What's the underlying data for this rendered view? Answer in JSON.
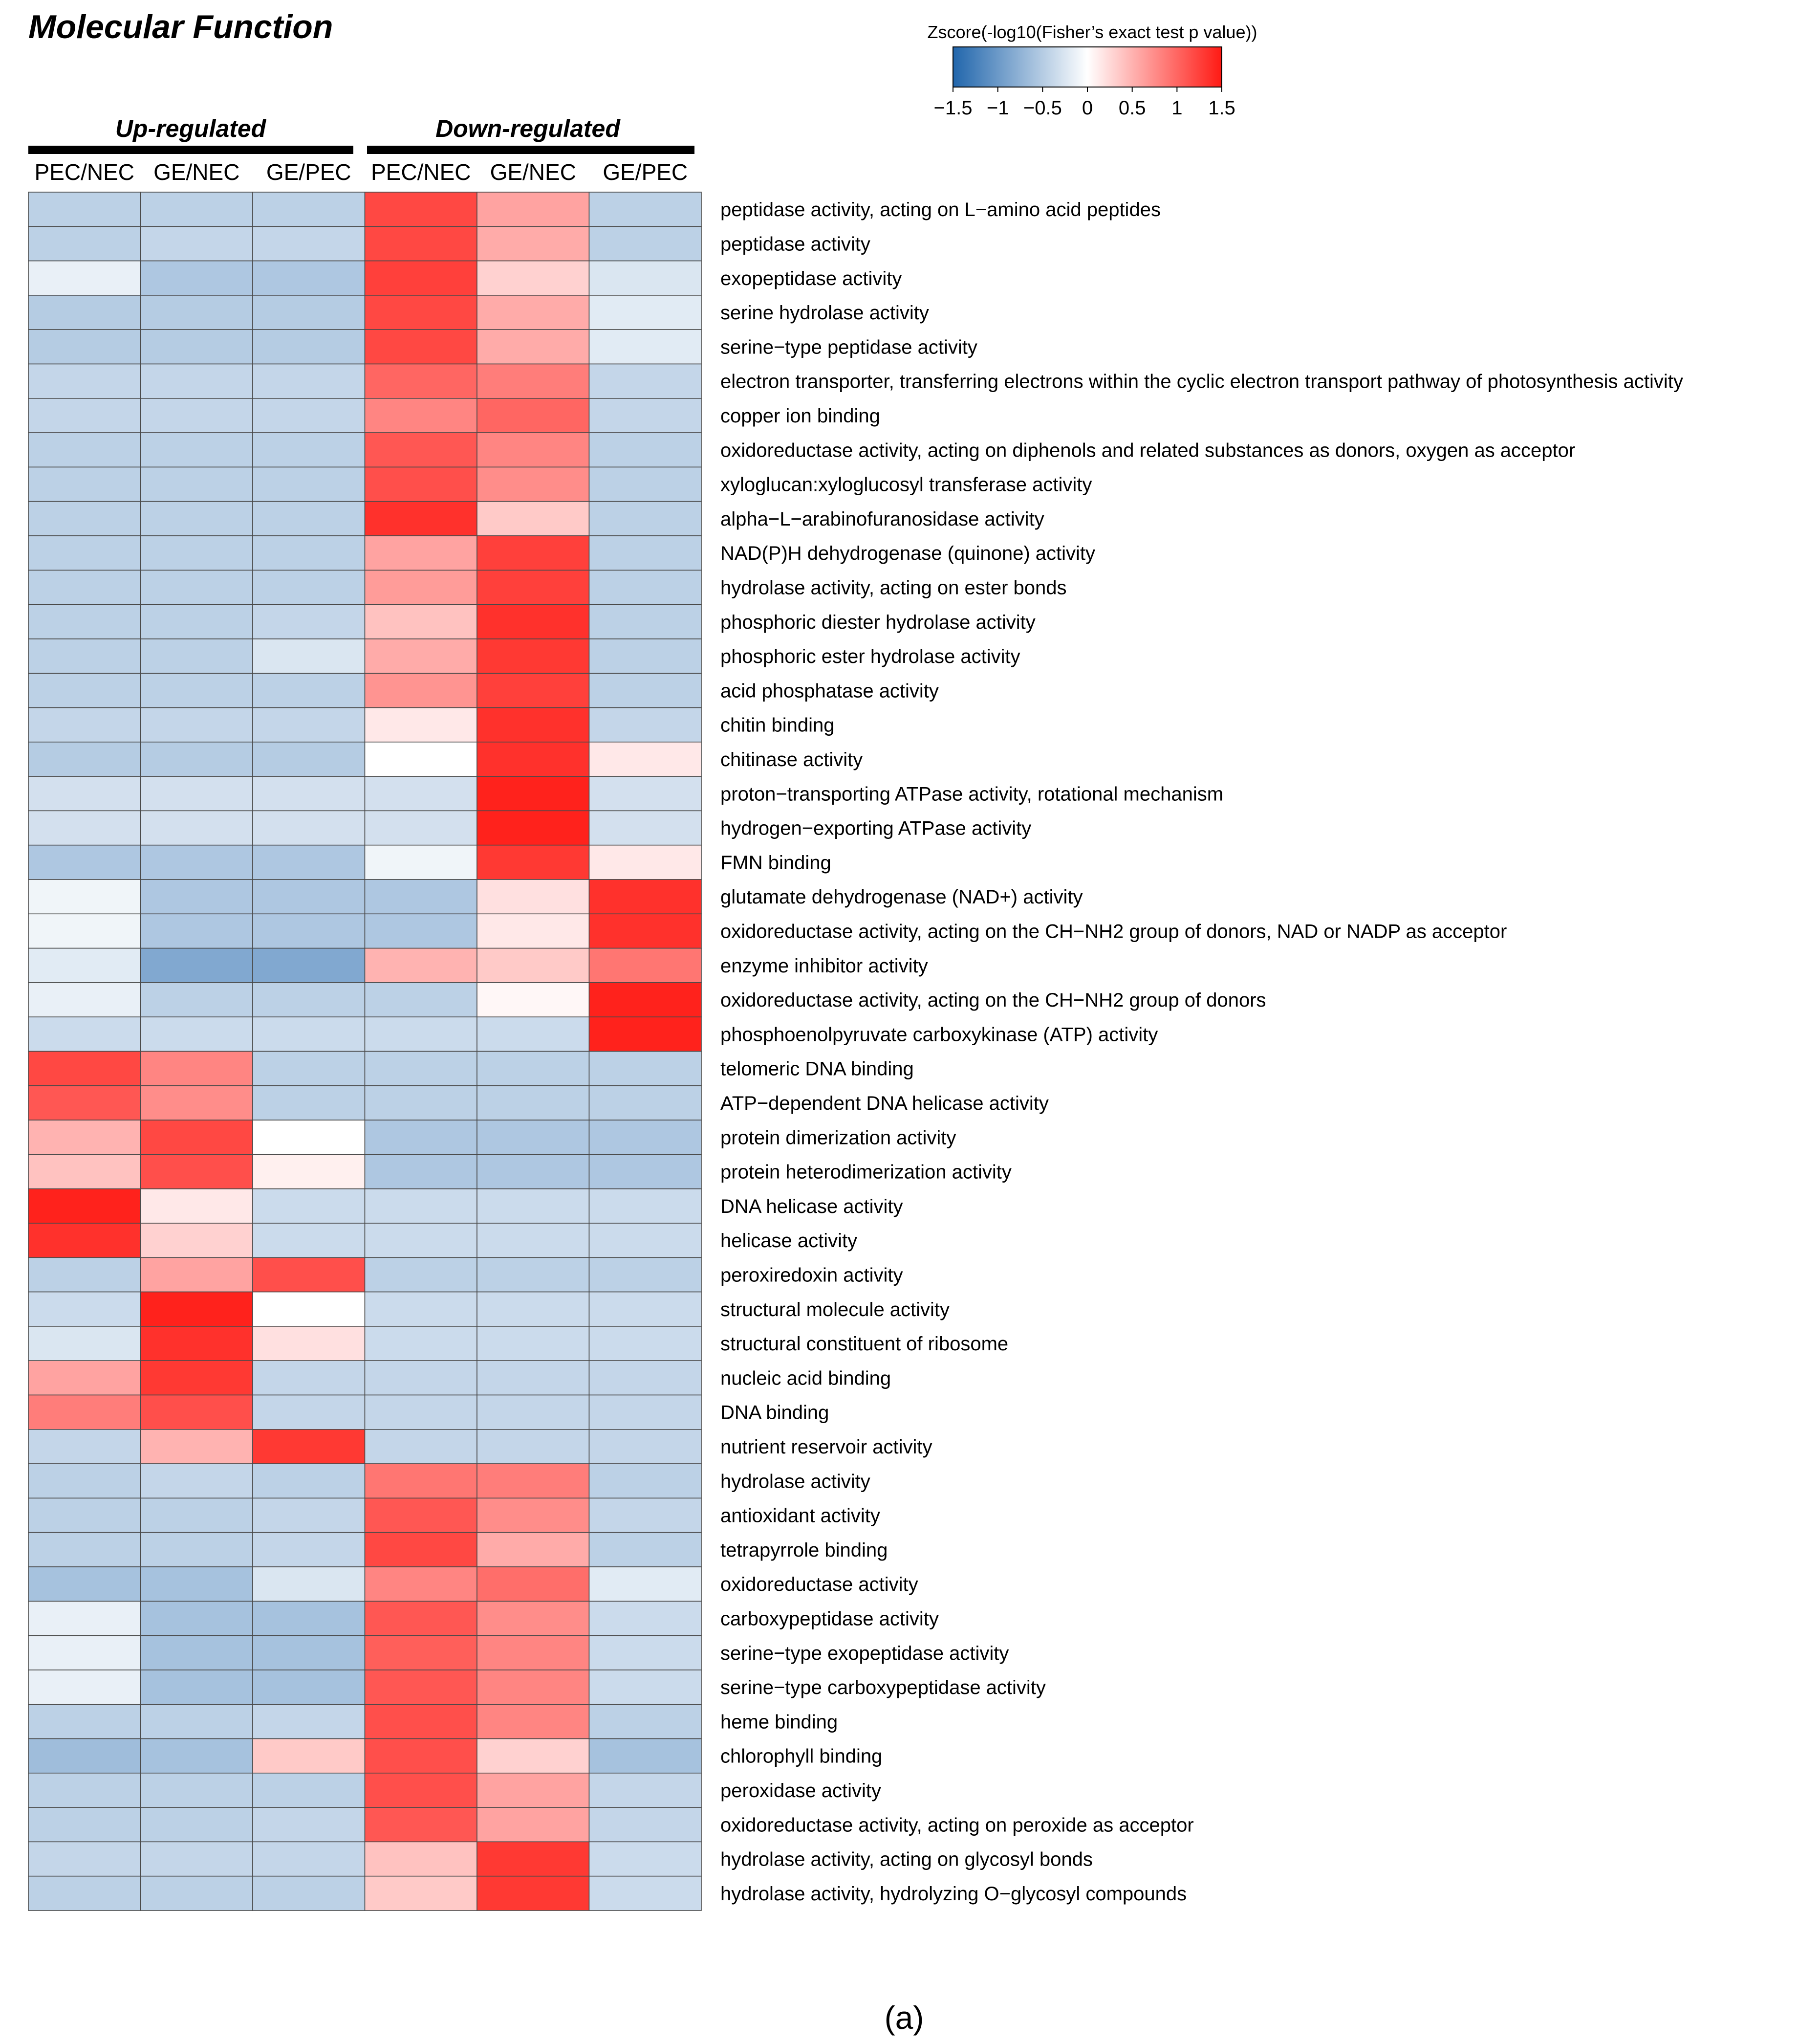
{
  "title": "Molecular Function",
  "caption": "(a)",
  "legend": {
    "title": "Zscore(-log10(Fisher’s exact test p value))",
    "ticks": [
      "−1.5",
      "−1",
      "−0.5",
      "0",
      "0.5",
      "1",
      "1.5"
    ],
    "tick_values": [
      -1.5,
      -1,
      -0.5,
      0,
      0.5,
      1,
      1.5
    ],
    "colors": {
      "low": "#2166ac",
      "mid": "#ffffff",
      "high": "#ff1a14"
    }
  },
  "chart_data": {
    "type": "heatmap",
    "title": "Molecular Function",
    "value_range": [
      -1.5,
      1.5
    ],
    "groups": [
      {
        "label": "Up-regulated",
        "columns": [
          0,
          1,
          2
        ]
      },
      {
        "label": "Down-regulated",
        "columns": [
          3,
          4,
          5
        ]
      }
    ],
    "columns": [
      "PEC/NEC",
      "GE/NEC",
      "GE/PEC",
      "PEC/NEC",
      "GE/NEC",
      "GE/PEC"
    ],
    "rows": [
      "peptidase activity, acting on L−amino acid peptides",
      "peptidase activity",
      "exopeptidase activity",
      "serine hydrolase activity",
      "serine−type peptidase activity",
      "electron transporter, transferring electrons within the cyclic electron transport pathway of photosynthesis activity",
      "copper ion binding",
      "oxidoreductase activity, acting on diphenols and related substances as donors, oxygen as acceptor",
      "xyloglucan:xyloglucosyl transferase activity",
      "alpha−L−arabinofuranosidase activity",
      "NAD(P)H dehydrogenase (quinone) activity",
      "hydrolase activity, acting on ester bonds",
      "phosphoric diester hydrolase activity",
      "phosphoric ester hydrolase activity",
      "acid phosphatase activity",
      "chitin binding",
      "chitinase activity",
      "proton−transporting ATPase activity, rotational mechanism",
      "hydrogen−exporting ATPase activity",
      "FMN binding",
      "glutamate dehydrogenase (NAD+) activity",
      "oxidoreductase activity, acting on the CH−NH2 group of donors, NAD or NADP as acceptor",
      "enzyme inhibitor activity",
      "oxidoreductase activity, acting on the CH−NH2 group of donors",
      "phosphoenolpyruvate carboxykinase (ATP) activity",
      "telomeric DNA binding",
      "ATP−dependent DNA helicase activity",
      "protein dimerization activity",
      "protein heterodimerization activity",
      "DNA helicase activity",
      "helicase activity",
      "peroxiredoxin activity",
      "structural molecule activity",
      "structural constituent of ribosome",
      "nucleic acid binding",
      "DNA binding",
      "nutrient reservoir activity",
      "hydrolase activity",
      "antioxidant activity",
      "tetrapyrrole binding",
      "oxidoreductase activity",
      "carboxypeptidase activity",
      "serine−type exopeptidase activity",
      "serine−type carboxypeptidase activity",
      "heme binding",
      "chlorophyll binding",
      "peroxidase activity",
      "oxidoreductase activity, acting on peroxide as acceptor",
      "hydrolase activity, acting on glycosyl bonds",
      "hydrolase activity, hydrolyzing O−glycosyl compounds"
    ],
    "values": [
      [
        -0.45,
        -0.45,
        -0.45,
        1.2,
        0.6,
        -0.45
      ],
      [
        -0.45,
        -0.4,
        -0.4,
        1.2,
        0.55,
        -0.45
      ],
      [
        -0.15,
        -0.55,
        -0.55,
        1.25,
        0.3,
        -0.25
      ],
      [
        -0.5,
        -0.5,
        -0.5,
        1.2,
        0.55,
        -0.2
      ],
      [
        -0.5,
        -0.5,
        -0.5,
        1.2,
        0.55,
        -0.2
      ],
      [
        -0.4,
        -0.4,
        -0.4,
        1.0,
        0.85,
        -0.4
      ],
      [
        -0.4,
        -0.4,
        -0.4,
        0.8,
        1.0,
        -0.4
      ],
      [
        -0.45,
        -0.45,
        -0.45,
        1.1,
        0.8,
        -0.45
      ],
      [
        -0.45,
        -0.45,
        -0.45,
        1.15,
        0.75,
        -0.45
      ],
      [
        -0.45,
        -0.45,
        -0.45,
        1.35,
        0.35,
        -0.45
      ],
      [
        -0.45,
        -0.45,
        -0.45,
        0.6,
        1.25,
        -0.45
      ],
      [
        -0.45,
        -0.45,
        -0.45,
        0.65,
        1.25,
        -0.45
      ],
      [
        -0.45,
        -0.45,
        -0.4,
        0.4,
        1.35,
        -0.45
      ],
      [
        -0.45,
        -0.45,
        -0.25,
        0.55,
        1.3,
        -0.45
      ],
      [
        -0.45,
        -0.45,
        -0.45,
        0.7,
        1.25,
        -0.45
      ],
      [
        -0.4,
        -0.4,
        -0.4,
        0.15,
        1.35,
        -0.4
      ],
      [
        -0.5,
        -0.5,
        -0.5,
        0.0,
        1.35,
        0.15
      ],
      [
        -0.3,
        -0.3,
        -0.3,
        -0.3,
        1.45,
        -0.3
      ],
      [
        -0.3,
        -0.3,
        -0.3,
        -0.3,
        1.45,
        -0.3
      ],
      [
        -0.55,
        -0.55,
        -0.55,
        -0.1,
        1.3,
        0.15
      ],
      [
        -0.1,
        -0.55,
        -0.55,
        -0.55,
        0.2,
        1.35
      ],
      [
        -0.1,
        -0.55,
        -0.55,
        -0.55,
        0.15,
        1.35
      ],
      [
        -0.2,
        -0.85,
        -0.85,
        0.5,
        0.35,
        0.9
      ],
      [
        -0.15,
        -0.45,
        -0.45,
        -0.45,
        0.05,
        1.45
      ],
      [
        -0.35,
        -0.35,
        -0.35,
        -0.35,
        -0.35,
        1.45
      ],
      [
        1.2,
        0.8,
        -0.45,
        -0.45,
        -0.45,
        -0.45
      ],
      [
        1.1,
        0.75,
        -0.45,
        -0.45,
        -0.45,
        -0.45
      ],
      [
        0.5,
        1.2,
        0.0,
        -0.55,
        -0.55,
        -0.55
      ],
      [
        0.4,
        1.15,
        0.1,
        -0.55,
        -0.55,
        -0.55
      ],
      [
        1.45,
        0.15,
        -0.35,
        -0.35,
        -0.35,
        -0.35
      ],
      [
        1.35,
        0.3,
        -0.35,
        -0.35,
        -0.35,
        -0.35
      ],
      [
        -0.45,
        0.6,
        1.15,
        -0.45,
        -0.45,
        -0.45
      ],
      [
        -0.35,
        1.45,
        0.0,
        -0.35,
        -0.35,
        -0.35
      ],
      [
        -0.25,
        1.35,
        0.2,
        -0.35,
        -0.35,
        -0.35
      ],
      [
        0.6,
        1.3,
        -0.4,
        -0.4,
        -0.4,
        -0.4
      ],
      [
        0.85,
        1.15,
        -0.4,
        -0.4,
        -0.4,
        -0.4
      ],
      [
        -0.4,
        0.5,
        1.3,
        -0.4,
        -0.4,
        -0.4
      ],
      [
        -0.45,
        -0.4,
        -0.45,
        0.9,
        0.85,
        -0.45
      ],
      [
        -0.45,
        -0.45,
        -0.4,
        1.1,
        0.75,
        -0.4
      ],
      [
        -0.45,
        -0.45,
        -0.4,
        1.2,
        0.55,
        -0.45
      ],
      [
        -0.6,
        -0.6,
        -0.25,
        0.8,
        0.95,
        -0.2
      ],
      [
        -0.15,
        -0.6,
        -0.6,
        1.1,
        0.75,
        -0.35
      ],
      [
        -0.15,
        -0.6,
        -0.6,
        1.05,
        0.8,
        -0.35
      ],
      [
        -0.15,
        -0.6,
        -0.6,
        1.1,
        0.8,
        -0.35
      ],
      [
        -0.45,
        -0.45,
        -0.4,
        1.15,
        0.8,
        -0.45
      ],
      [
        -0.65,
        -0.6,
        0.35,
        1.15,
        0.3,
        -0.6
      ],
      [
        -0.45,
        -0.45,
        -0.45,
        1.15,
        0.6,
        -0.4
      ],
      [
        -0.45,
        -0.45,
        -0.4,
        1.1,
        0.6,
        -0.4
      ],
      [
        -0.4,
        -0.4,
        -0.4,
        0.4,
        1.3,
        -0.35
      ],
      [
        -0.45,
        -0.45,
        -0.45,
        0.35,
        1.3,
        -0.35
      ]
    ]
  }
}
